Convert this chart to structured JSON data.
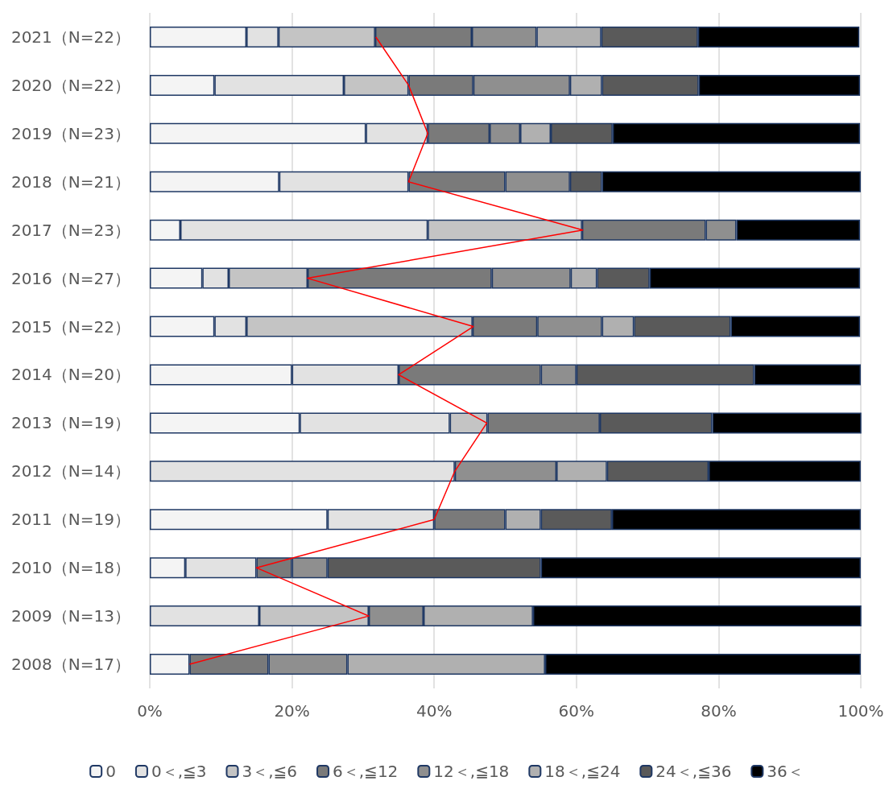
{
  "chart_data": {
    "type": "bar",
    "orientation": "horizontal",
    "stacked": true,
    "categories": [
      "2021（N=22）",
      "2020（N=22）",
      "2019（N=23）",
      "2018（N=21）",
      "2017（N=23）",
      "2016（N=27）",
      "2015（N=22）",
      "2014（N=20）",
      "2013（N=19）",
      "2012（N=14）",
      "2011（N=19）",
      "2010（N=18）",
      "2009（N=13）",
      "2008（N=17）"
    ],
    "series": [
      {
        "name": "0",
        "color": "#f4f4f4",
        "values": [
          13.6,
          9.1,
          30.4,
          18.2,
          4.3,
          7.4,
          9.1,
          20,
          21.1,
          null,
          25,
          5,
          null,
          5.6
        ]
      },
      {
        "name": "0＜,≦3",
        "color": "#e2e2e2",
        "values": [
          4.5,
          18.2,
          8.7,
          18.2,
          34.8,
          3.7,
          4.5,
          15,
          21.1,
          42.9,
          15,
          10,
          15.4,
          null
        ]
      },
      {
        "name": "3＜,≦6",
        "color": "#c4c4c4",
        "values": [
          13.6,
          9.1,
          null,
          null,
          21.7,
          11.1,
          31.8,
          null,
          5.3,
          null,
          null,
          null,
          15.4,
          null
        ]
      },
      {
        "name": "6＜,≦12",
        "color": "#7a7a7a",
        "values": [
          13.6,
          9.1,
          8.7,
          13.6,
          17.4,
          25.9,
          9.1,
          20,
          15.8,
          null,
          10,
          5,
          null,
          11.1
        ]
      },
      {
        "name": "12＜,≦18",
        "color": "#8f8f8f",
        "values": [
          9.1,
          13.6,
          4.3,
          9.1,
          4.3,
          11.1,
          9.1,
          5,
          null,
          14.3,
          null,
          5,
          7.7,
          11.1
        ]
      },
      {
        "name": "18＜,≦24",
        "color": "#b0b0b0",
        "values": [
          9.1,
          4.5,
          4.3,
          null,
          null,
          3.7,
          4.5,
          null,
          null,
          7.1,
          5,
          null,
          15.4,
          27.8
        ]
      },
      {
        "name": "24＜,≦36",
        "color": "#5a5a5a",
        "values": [
          13.6,
          13.6,
          8.7,
          4.5,
          null,
          7.4,
          13.6,
          25,
          15.8,
          14.3,
          10,
          30,
          null,
          null
        ]
      },
      {
        "name": "36＜",
        "color": "#000000",
        "values": [
          22.7,
          22.7,
          34.8,
          36.4,
          17.4,
          29.6,
          18.2,
          15,
          21.1,
          21.4,
          35,
          45,
          46.2,
          44.4
        ]
      },
      {
        "type": "line",
        "color": "#ff0000",
        "values": [
          31.8,
          36.4,
          39.1,
          36.4,
          60.9,
          22.2,
          45.5,
          35,
          47.4,
          42.9,
          40,
          15,
          30.8,
          5.6
        ]
      }
    ],
    "xlim": [
      0,
      100
    ],
    "xticks": [
      {
        "value": 0,
        "label": "0%"
      },
      {
        "value": 20,
        "label": "20%"
      },
      {
        "value": 40,
        "label": "40%"
      },
      {
        "value": 60,
        "label": "60%"
      },
      {
        "value": 80,
        "label": "80%"
      },
      {
        "value": 100,
        "label": "100%"
      }
    ],
    "grid": "x",
    "legend": "bottom",
    "marker": "none"
  }
}
